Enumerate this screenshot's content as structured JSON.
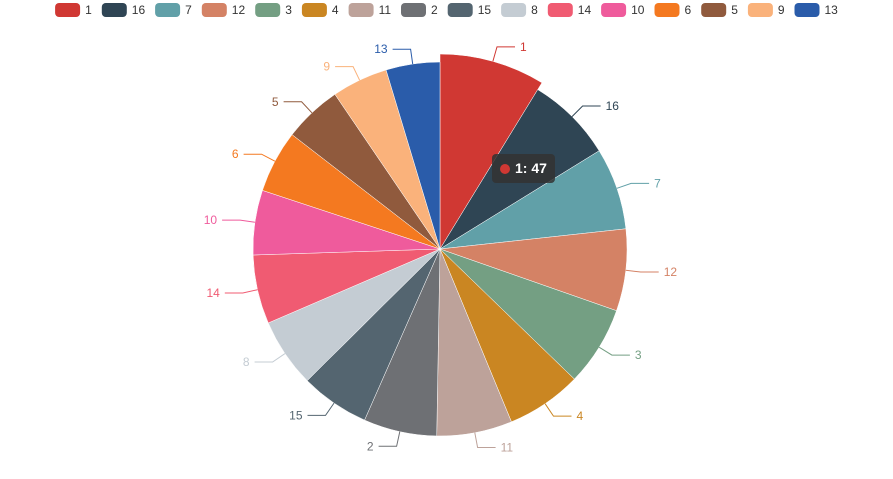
{
  "chart_data": {
    "type": "pie",
    "legend_position": "top",
    "categories": [
      "1",
      "16",
      "7",
      "12",
      "3",
      "4",
      "11",
      "2",
      "15",
      "8",
      "14",
      "10",
      "6",
      "5",
      "9",
      "13"
    ],
    "series": [
      {
        "values": [
          47,
          40,
          38,
          38,
          37,
          35,
          35,
          34,
          32,
          32,
          32,
          30,
          29,
          27,
          26,
          25
        ],
        "colors": [
          "#d03833",
          "#2f4554",
          "#61a0a8",
          "#d48265",
          "#749f83",
          "#ca8622",
          "#bda29a",
          "#6e7074",
          "#546570",
          "#c4ccd3",
          "#f05b72",
          "#ef5b9c",
          "#f47920",
          "#905a3d",
          "#fab27b",
          "#2a5caa"
        ],
        "emphasized": "1"
      }
    ],
    "legend": [
      "1",
      "16",
      "7",
      "12",
      "3",
      "4",
      "11",
      "2",
      "15",
      "8",
      "14",
      "10",
      "6",
      "5",
      "9",
      "13"
    ]
  },
  "tooltip": {
    "text": "1: 47",
    "color": "#d03833"
  }
}
